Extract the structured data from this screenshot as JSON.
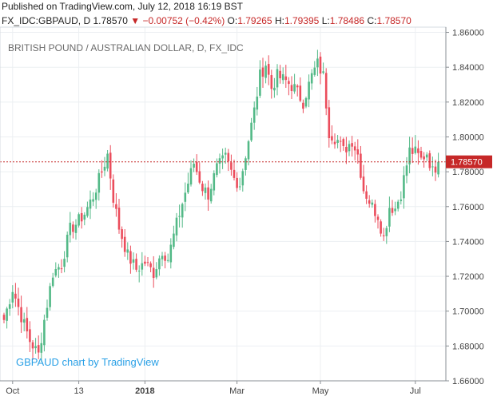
{
  "header": {
    "published": "Published on TradingView.com, July 12, 2018 16:19 BST",
    "symbol": "FX_IDC:GBPAUD, D",
    "last": "1.78570",
    "change": "−0.00752 (−0.42%)",
    "open_label": "O:",
    "open": "1.79265",
    "high_label": "H:",
    "high": "1.79395",
    "low_label": "L:",
    "low": "1.78486",
    "close_label": "C:",
    "close": "1.78570"
  },
  "watermark": "GBPAUD chart by TradingView",
  "colors": {
    "up": "#53b987",
    "down": "#eb4d5c",
    "price_line": "#c62828",
    "grid": "#eceff2"
  },
  "chart_data": {
    "type": "candlestick",
    "title": "BRITISH POUND / AUSTRALIAN DOLLAR, D, FX_IDC",
    "ylim": [
      1.66,
      1.863
    ],
    "yticks": [
      "1.66000",
      "1.68000",
      "1.70000",
      "1.72000",
      "1.74000",
      "1.76000",
      "1.78000",
      "1.80000",
      "1.82000",
      "1.84000",
      "1.86000"
    ],
    "xlabels": [
      "Oct",
      "13",
      "2018",
      "Mar",
      "May",
      "Jul"
    ],
    "xlabel_index": [
      3,
      26,
      49,
      81,
      110,
      143
    ],
    "last_price": 1.7857,
    "last_price_label": "1.78570",
    "anchors": [
      [
        0,
        1.695
      ],
      [
        3,
        1.713
      ],
      [
        6,
        1.697
      ],
      [
        9,
        1.683
      ],
      [
        12,
        1.675
      ],
      [
        14,
        1.695
      ],
      [
        17,
        1.722
      ],
      [
        20,
        1.727
      ],
      [
        23,
        1.747
      ],
      [
        25,
        1.75
      ],
      [
        28,
        1.756
      ],
      [
        31,
        1.766
      ],
      [
        34,
        1.78
      ],
      [
        36,
        1.79
      ],
      [
        38,
        1.765
      ],
      [
        40,
        1.748
      ],
      [
        43,
        1.732
      ],
      [
        46,
        1.724
      ],
      [
        49,
        1.728
      ],
      [
        52,
        1.722
      ],
      [
        55,
        1.735
      ],
      [
        57,
        1.73
      ],
      [
        60,
        1.75
      ],
      [
        63,
        1.768
      ],
      [
        66,
        1.785
      ],
      [
        69,
        1.771
      ],
      [
        71,
        1.767
      ],
      [
        74,
        1.782
      ],
      [
        77,
        1.788
      ],
      [
        80,
        1.776
      ],
      [
        82,
        1.773
      ],
      [
        84,
        1.79
      ],
      [
        87,
        1.815
      ],
      [
        89,
        1.835
      ],
      [
        91,
        1.842
      ],
      [
        93,
        1.828
      ],
      [
        95,
        1.835
      ],
      [
        98,
        1.832
      ],
      [
        101,
        1.828
      ],
      [
        104,
        1.82
      ],
      [
        107,
        1.835
      ],
      [
        109,
        1.842
      ],
      [
        111,
        1.835
      ],
      [
        113,
        1.803
      ],
      [
        116,
        1.798
      ],
      [
        118,
        1.792
      ],
      [
        121,
        1.798
      ],
      [
        123,
        1.79
      ],
      [
        125,
        1.77
      ],
      [
        128,
        1.76
      ],
      [
        130,
        1.755
      ],
      [
        132,
        1.742
      ],
      [
        134,
        1.76
      ],
      [
        136,
        1.759
      ],
      [
        138,
        1.768
      ],
      [
        141,
        1.792
      ],
      [
        143,
        1.791
      ],
      [
        145,
        1.787
      ],
      [
        147,
        1.791
      ],
      [
        149,
        1.78
      ],
      [
        151,
        1.7857
      ]
    ]
  }
}
